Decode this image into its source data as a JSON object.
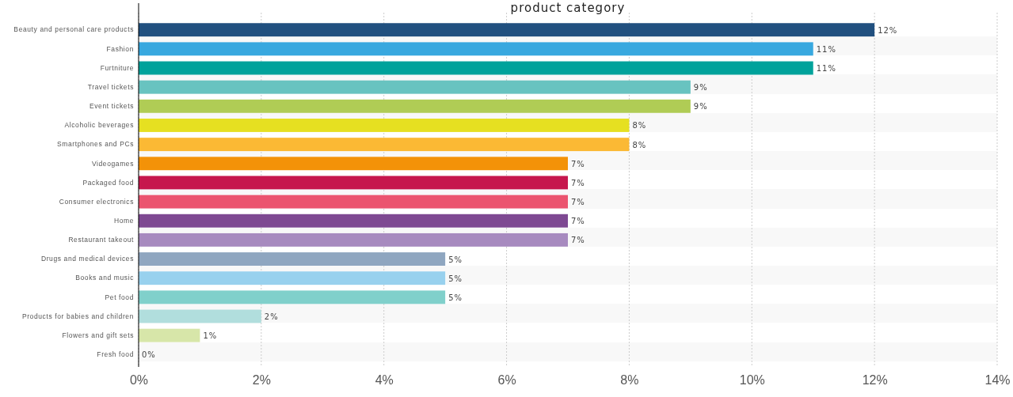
{
  "chart_data": {
    "type": "bar",
    "orientation": "horizontal",
    "title": "product category",
    "categories": [
      "Beauty and personal care products",
      "Fashion",
      "Furtniture",
      "Travel tickets",
      "Event tickets",
      "Alcoholic beverages",
      "Smartphones and PCs",
      "Videogames",
      "Packaged food",
      "Consumer electronics",
      "Home",
      "Restaurant takeout",
      "Drugs and medical devices",
      "Books and music",
      "Pet food",
      "Products for babies and children",
      "Flowers and gift sets",
      "Fresh food"
    ],
    "values": [
      12,
      11,
      11,
      9,
      9,
      8,
      8,
      7,
      7,
      7,
      7,
      7,
      5,
      5,
      5,
      2,
      1,
      0
    ],
    "value_labels": [
      "12%",
      "11%",
      "11%",
      "9%",
      "9%",
      "8%",
      "8%",
      "7%",
      "7%",
      "7%",
      "7%",
      "7%",
      "5%",
      "5%",
      "5%",
      "2%",
      "1%",
      "0%"
    ],
    "colors": [
      "#21507f",
      "#38a8df",
      "#00a29b",
      "#68c3c0",
      "#b0cc55",
      "#e6e021",
      "#fbb934",
      "#f39208",
      "#c6174d",
      "#eb546f",
      "#7e4992",
      "#a78abf",
      "#8fa6c0",
      "#98d1ee",
      "#80d0cb",
      "#b1dedd",
      "#d7e6a9",
      "#cccccc"
    ],
    "xlim": [
      0,
      14
    ],
    "xticks": [
      {
        "value": 0,
        "label": "0%"
      },
      {
        "value": 2,
        "label": "2%"
      },
      {
        "value": 4,
        "label": "4%"
      },
      {
        "value": 6,
        "label": "6%"
      },
      {
        "value": 8,
        "label": "8%"
      },
      {
        "value": 10,
        "label": "10%"
      },
      {
        "value": 12,
        "label": "12%"
      },
      {
        "value": 14,
        "label": "14%"
      }
    ],
    "grid": "x"
  }
}
